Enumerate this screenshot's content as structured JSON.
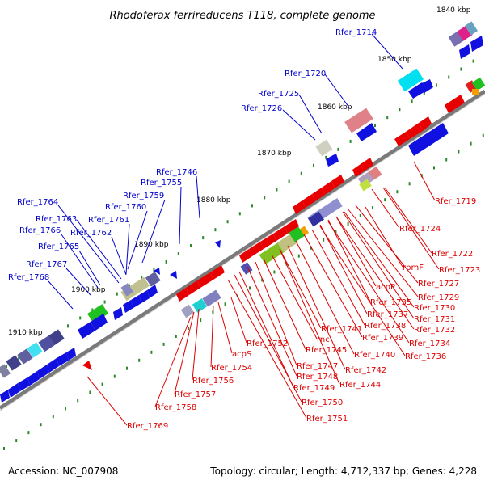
{
  "title": "Rhodoferax ferrireducens T118, complete genome",
  "footer": {
    "accession": "Accession: NC_007908",
    "summary": "Topology: circular; Length: 4,712,337 bp; Genes: 4,228"
  },
  "colors": {
    "forward_label": "#0000cc",
    "reverse_label": "#dd0000",
    "forward_gene": "#1010e0",
    "reverse_gene": "#e80000",
    "backbone": "#7a7a7a",
    "tick": "#2a8a2a"
  },
  "ticks": [
    "1840 kbp",
    "1850 kbp",
    "1860 kbp",
    "1870 kbp",
    "1880 kbp",
    "1890 kbp",
    "1900 kbp",
    "1910 kbp"
  ],
  "forward_labels": [
    "Rfer_1714",
    "Rfer_1720",
    "Rfer_1725",
    "Rfer_1726",
    "Rfer_1746",
    "Rfer_1755",
    "Rfer_1759",
    "Rfer_1760",
    "Rfer_1761",
    "Rfer_1762",
    "Rfer_1763",
    "Rfer_1764",
    "Rfer_1765",
    "Rfer_1766",
    "Rfer_1767",
    "Rfer_1768"
  ],
  "reverse_labels": [
    "Rfer_1719",
    "Rfer_1724",
    "Rfer_1722",
    "Rfer_1723",
    "rpmF",
    "Rfer_1727",
    "acpP",
    "Rfer_1729",
    "Rfer_1735",
    "Rfer_1730",
    "Rfer_1737",
    "Rfer_1731",
    "Rfer_1741",
    "Rfer_1738",
    "Rfer_1732",
    "Rfer_1739",
    "Rfer_1734",
    "rnc",
    "Rfer_1736",
    "Rfer_1752",
    "Rfer_1745",
    "Rfer_1740",
    "acpS",
    "Rfer_1747",
    "Rfer_1742",
    "Rfer_1754",
    "Rfer_1748",
    "Rfer_1744",
    "Rfer_1756",
    "Rfer_1749",
    "Rfer_1757",
    "Rfer_1750",
    "Rfer_1758",
    "Rfer_1751",
    "Rfer_1769"
  ]
}
